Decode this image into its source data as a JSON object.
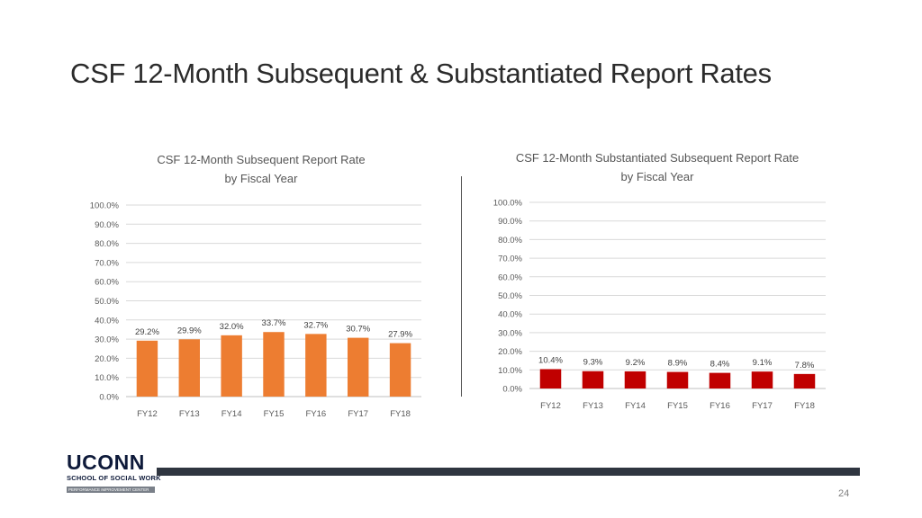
{
  "slide": {
    "title": "CSF 12-Month Subsequent & Substantiated Report Rates",
    "page_number": "24"
  },
  "logo": {
    "name": "UCONN",
    "school": "SCHOOL OF SOCIAL WORK",
    "tagline": "PERFORMANCE IMPROVEMENT CENTER"
  },
  "colors": {
    "left_bars": "#ed7d31",
    "right_bars": "#c00000",
    "gridline": "#d9d9d9",
    "footer_bar": "#2f3540"
  },
  "chart_data": [
    {
      "type": "bar",
      "title_lines": [
        "CSF 12-Month Subsequent Report Rate",
        "by Fiscal Year"
      ],
      "categories": [
        "FY12",
        "FY13",
        "FY14",
        "FY15",
        "FY16",
        "FY17",
        "FY18"
      ],
      "values": [
        29.2,
        29.9,
        32.0,
        33.7,
        32.7,
        30.7,
        27.9
      ],
      "data_labels": [
        "29.2%",
        "29.9%",
        "32.0%",
        "33.7%",
        "32.7%",
        "30.7%",
        "27.9%"
      ],
      "y_ticks": [
        "0.0%",
        "10.0%",
        "20.0%",
        "30.0%",
        "40.0%",
        "50.0%",
        "60.0%",
        "70.0%",
        "80.0%",
        "90.0%",
        "100.0%"
      ],
      "ylim": [
        0,
        100
      ],
      "grid": true,
      "color": "#ed7d31"
    },
    {
      "type": "bar",
      "title_lines": [
        "CSF 12-Month Substantiated Subsequent Report Rate",
        "by Fiscal Year"
      ],
      "categories": [
        "FY12",
        "FY13",
        "FY14",
        "FY15",
        "FY16",
        "FY17",
        "FY18"
      ],
      "values": [
        10.4,
        9.3,
        9.2,
        8.9,
        8.4,
        9.1,
        7.8
      ],
      "data_labels": [
        "10.4%",
        "9.3%",
        "9.2%",
        "8.9%",
        "8.4%",
        "9.1%",
        "7.8%"
      ],
      "y_ticks": [
        "0.0%",
        "10.0%",
        "20.0%",
        "30.0%",
        "40.0%",
        "50.0%",
        "60.0%",
        "70.0%",
        "80.0%",
        "90.0%",
        "100.0%"
      ],
      "ylim": [
        0,
        100
      ],
      "grid": true,
      "color": "#c00000"
    }
  ]
}
